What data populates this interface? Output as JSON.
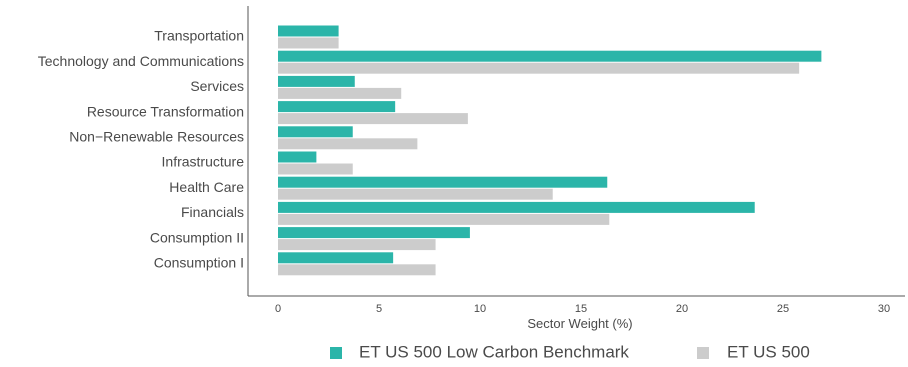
{
  "chart_data": {
    "type": "bar",
    "orientation": "horizontal",
    "categories": [
      "Transportation",
      "Technology and Communications",
      "Services",
      "Resource Transformation",
      "Non−Renewable Resources",
      "Infrastructure",
      "Health Care",
      "Financials",
      "Consumption II",
      "Consumption I"
    ],
    "series": [
      {
        "name": "ET US 500 Low Carbon Benchmark",
        "color": "#2bb5a9",
        "values": [
          3.0,
          26.9,
          3.8,
          5.8,
          3.7,
          1.9,
          16.3,
          23.6,
          9.5,
          5.7
        ]
      },
      {
        "name": "ET US 500",
        "color": "#cccccc",
        "values": [
          3.0,
          25.8,
          6.1,
          9.4,
          6.9,
          3.7,
          13.6,
          16.4,
          7.8,
          7.8
        ]
      }
    ],
    "xlabel": "Sector Weight (%)",
    "xlim": [
      0,
      30
    ],
    "xticks": [
      0,
      5,
      10,
      15,
      20,
      25,
      30
    ],
    "grid": false,
    "legend_position": "bottom"
  }
}
